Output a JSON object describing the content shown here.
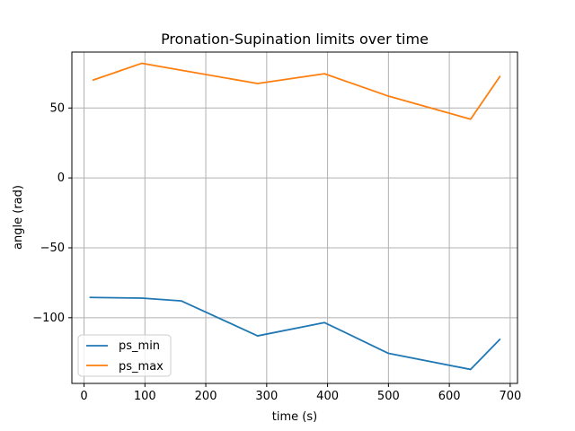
{
  "chart_data": {
    "type": "line",
    "title": "Pronation-Supination limits over time",
    "xlabel": "time (s)",
    "ylabel": "angle (rad)",
    "xlim": [
      -20,
      712
    ],
    "ylim": [
      -147,
      90
    ],
    "xticks": [
      0,
      100,
      200,
      300,
      400,
      500,
      600,
      700
    ],
    "yticks": [
      -100,
      -50,
      0,
      50
    ],
    "xtick_labels": [
      "0",
      "100",
      "200",
      "300",
      "400",
      "500",
      "600",
      "700"
    ],
    "ytick_labels": [
      "−100",
      "−50",
      "0",
      "50"
    ],
    "grid": true,
    "legend_position": "lower-left",
    "series": [
      {
        "name": "ps_min",
        "color": "#1f77b4",
        "x": [
          10,
          95,
          160,
          285,
          395,
          500,
          635,
          683
        ],
        "y": [
          -85.5,
          -86,
          -88,
          -113,
          -103.5,
          -125.5,
          -137,
          -115.5
        ]
      },
      {
        "name": "ps_max",
        "color": "#ff7f0e",
        "x": [
          15,
          95,
          160,
          285,
          395,
          500,
          635,
          683
        ],
        "y": [
          70,
          82,
          77,
          67.5,
          74.5,
          58.5,
          42,
          72.5
        ]
      }
    ]
  }
}
